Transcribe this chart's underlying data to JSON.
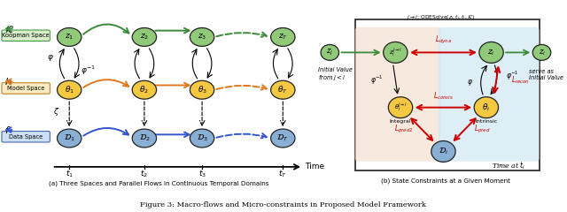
{
  "title": "Figure 3: Macro-flows and Micro-constraints in Proposed Model Framework",
  "caption_a": "(a) Three Spaces and Parallel Flows in Continuous Temporal Domains",
  "caption_b": "(b) State Constraints at a Given Moment",
  "bg_color": "#ffffff",
  "green_color": "#90c978",
  "yellow_color": "#f5c842",
  "blue_color": "#8aafd4",
  "arrow_green": "#3a8a3a",
  "arrow_orange": "#e07820",
  "arrow_blue": "#3355cc",
  "red_color": "#cc0000",
  "koopman_box_fc": "#d8eeca",
  "koopman_box_ec": "#4a9a4a",
  "model_box_fc": "#faecc0",
  "model_box_ec": "#c08020",
  "data_box_fc": "#cce0f5",
  "data_box_ec": "#4466aa",
  "left_bg": "#f5e0d0",
  "right_bg": "#d0e8f5"
}
